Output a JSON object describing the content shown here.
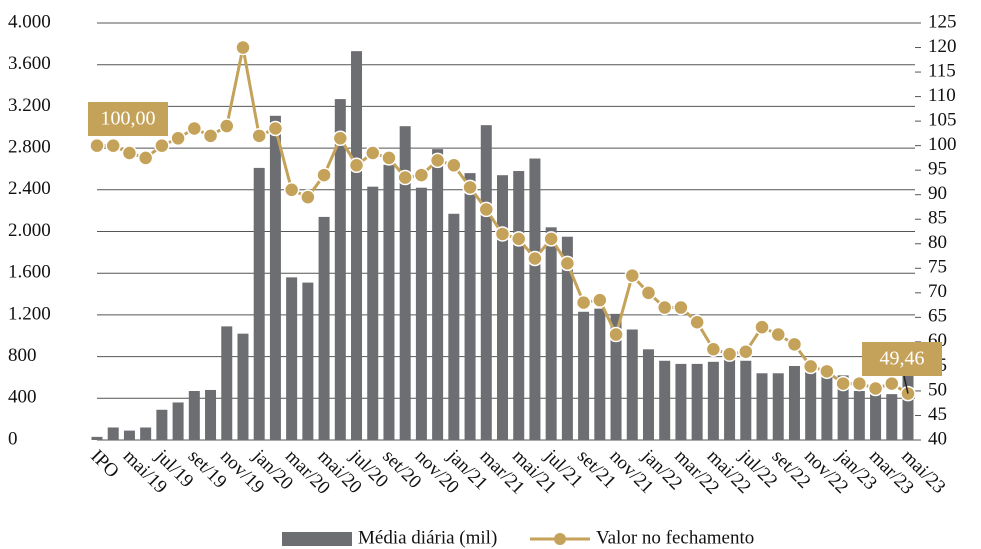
{
  "chart_data": {
    "type": "bar-line",
    "categories": [
      "IPO",
      null,
      "mai/19",
      null,
      "jul/19",
      null,
      "set/19",
      null,
      "nov/19",
      null,
      "jan/20",
      null,
      "mar/20",
      null,
      "mai/20",
      null,
      "jul/20",
      null,
      "set/20",
      null,
      "nov/20",
      null,
      "jan/21",
      null,
      "mar/21",
      null,
      "mai/21",
      null,
      "jul/21",
      null,
      "set/21",
      null,
      "nov/21",
      null,
      "jan/22",
      null,
      "mar/22",
      null,
      "mai/22",
      null,
      "jul/22",
      null,
      "set/22",
      null,
      "nov/22",
      null,
      "jan/23",
      null,
      "mar/23",
      null,
      "mai/23"
    ],
    "series": [
      {
        "name": "Média diária (mil)",
        "color": "#6d6e71",
        "kind": "bar",
        "values": [
          30,
          120,
          90,
          120,
          290,
          360,
          470,
          480,
          1090,
          1020,
          2610,
          3110,
          1560,
          1510,
          2140,
          3270,
          3730,
          2430,
          2640,
          3010,
          2420,
          2790,
          2170,
          2560,
          3020,
          2540,
          2580,
          2700,
          2040,
          1950,
          1230,
          1260,
          1210,
          1060,
          870,
          760,
          730,
          730,
          750,
          780,
          760,
          640,
          640,
          710,
          760,
          660,
          620,
          470,
          460,
          440,
          660
        ]
      },
      {
        "name": "Valor no fechamento",
        "color": "#c4a25a",
        "kind": "line",
        "axis": "y2",
        "values": [
          100,
          100,
          98.5,
          97.5,
          100,
          101.5,
          103.5,
          102,
          104,
          120,
          102,
          103.5,
          91,
          89.5,
          94,
          101.5,
          96,
          98.5,
          97.5,
          93.5,
          94,
          97,
          96,
          91.5,
          87,
          82,
          81,
          77,
          81,
          76,
          68,
          68.5,
          61.5,
          73.5,
          70,
          67,
          67,
          64,
          58.5,
          57.5,
          58,
          63,
          61.5,
          59.5,
          55,
          54,
          51.5,
          51.5,
          50.5,
          51.5,
          49.46
        ],
        "value_labels": [
          "100,00",
          null,
          null,
          null,
          null,
          null,
          null,
          null,
          null,
          null,
          null,
          null,
          null,
          null,
          null,
          null,
          null,
          null,
          null,
          null,
          null,
          null,
          null,
          null,
          null,
          null,
          null,
          null,
          null,
          null,
          null,
          null,
          null,
          null,
          null,
          null,
          null,
          null,
          null,
          null,
          null,
          null,
          null,
          null,
          null,
          null,
          null,
          null,
          null,
          null,
          "49,46"
        ]
      }
    ],
    "ylim": [
      0,
      4000
    ],
    "yticks": [
      0,
      400,
      800,
      {
        "value": 1200,
        "label": "1.200"
      },
      {
        "value": 1600,
        "label": "1.600"
      },
      {
        "value": 2000,
        "label": "2.000"
      },
      {
        "value": 2400,
        "label": "2.400"
      },
      {
        "value": 2800,
        "label": "2.800"
      },
      {
        "value": 3200,
        "label": "3.200"
      },
      {
        "value": 3600,
        "label": "3.600"
      },
      {
        "value": 4000,
        "label": "4.000"
      }
    ],
    "y2lim": [
      40,
      125
    ],
    "y2ticks": [
      40,
      45,
      50,
      55,
      60,
      65,
      70,
      75,
      80,
      85,
      90,
      95,
      100,
      105,
      110,
      115,
      120,
      125
    ],
    "grid": true,
    "legend": "bottom"
  }
}
